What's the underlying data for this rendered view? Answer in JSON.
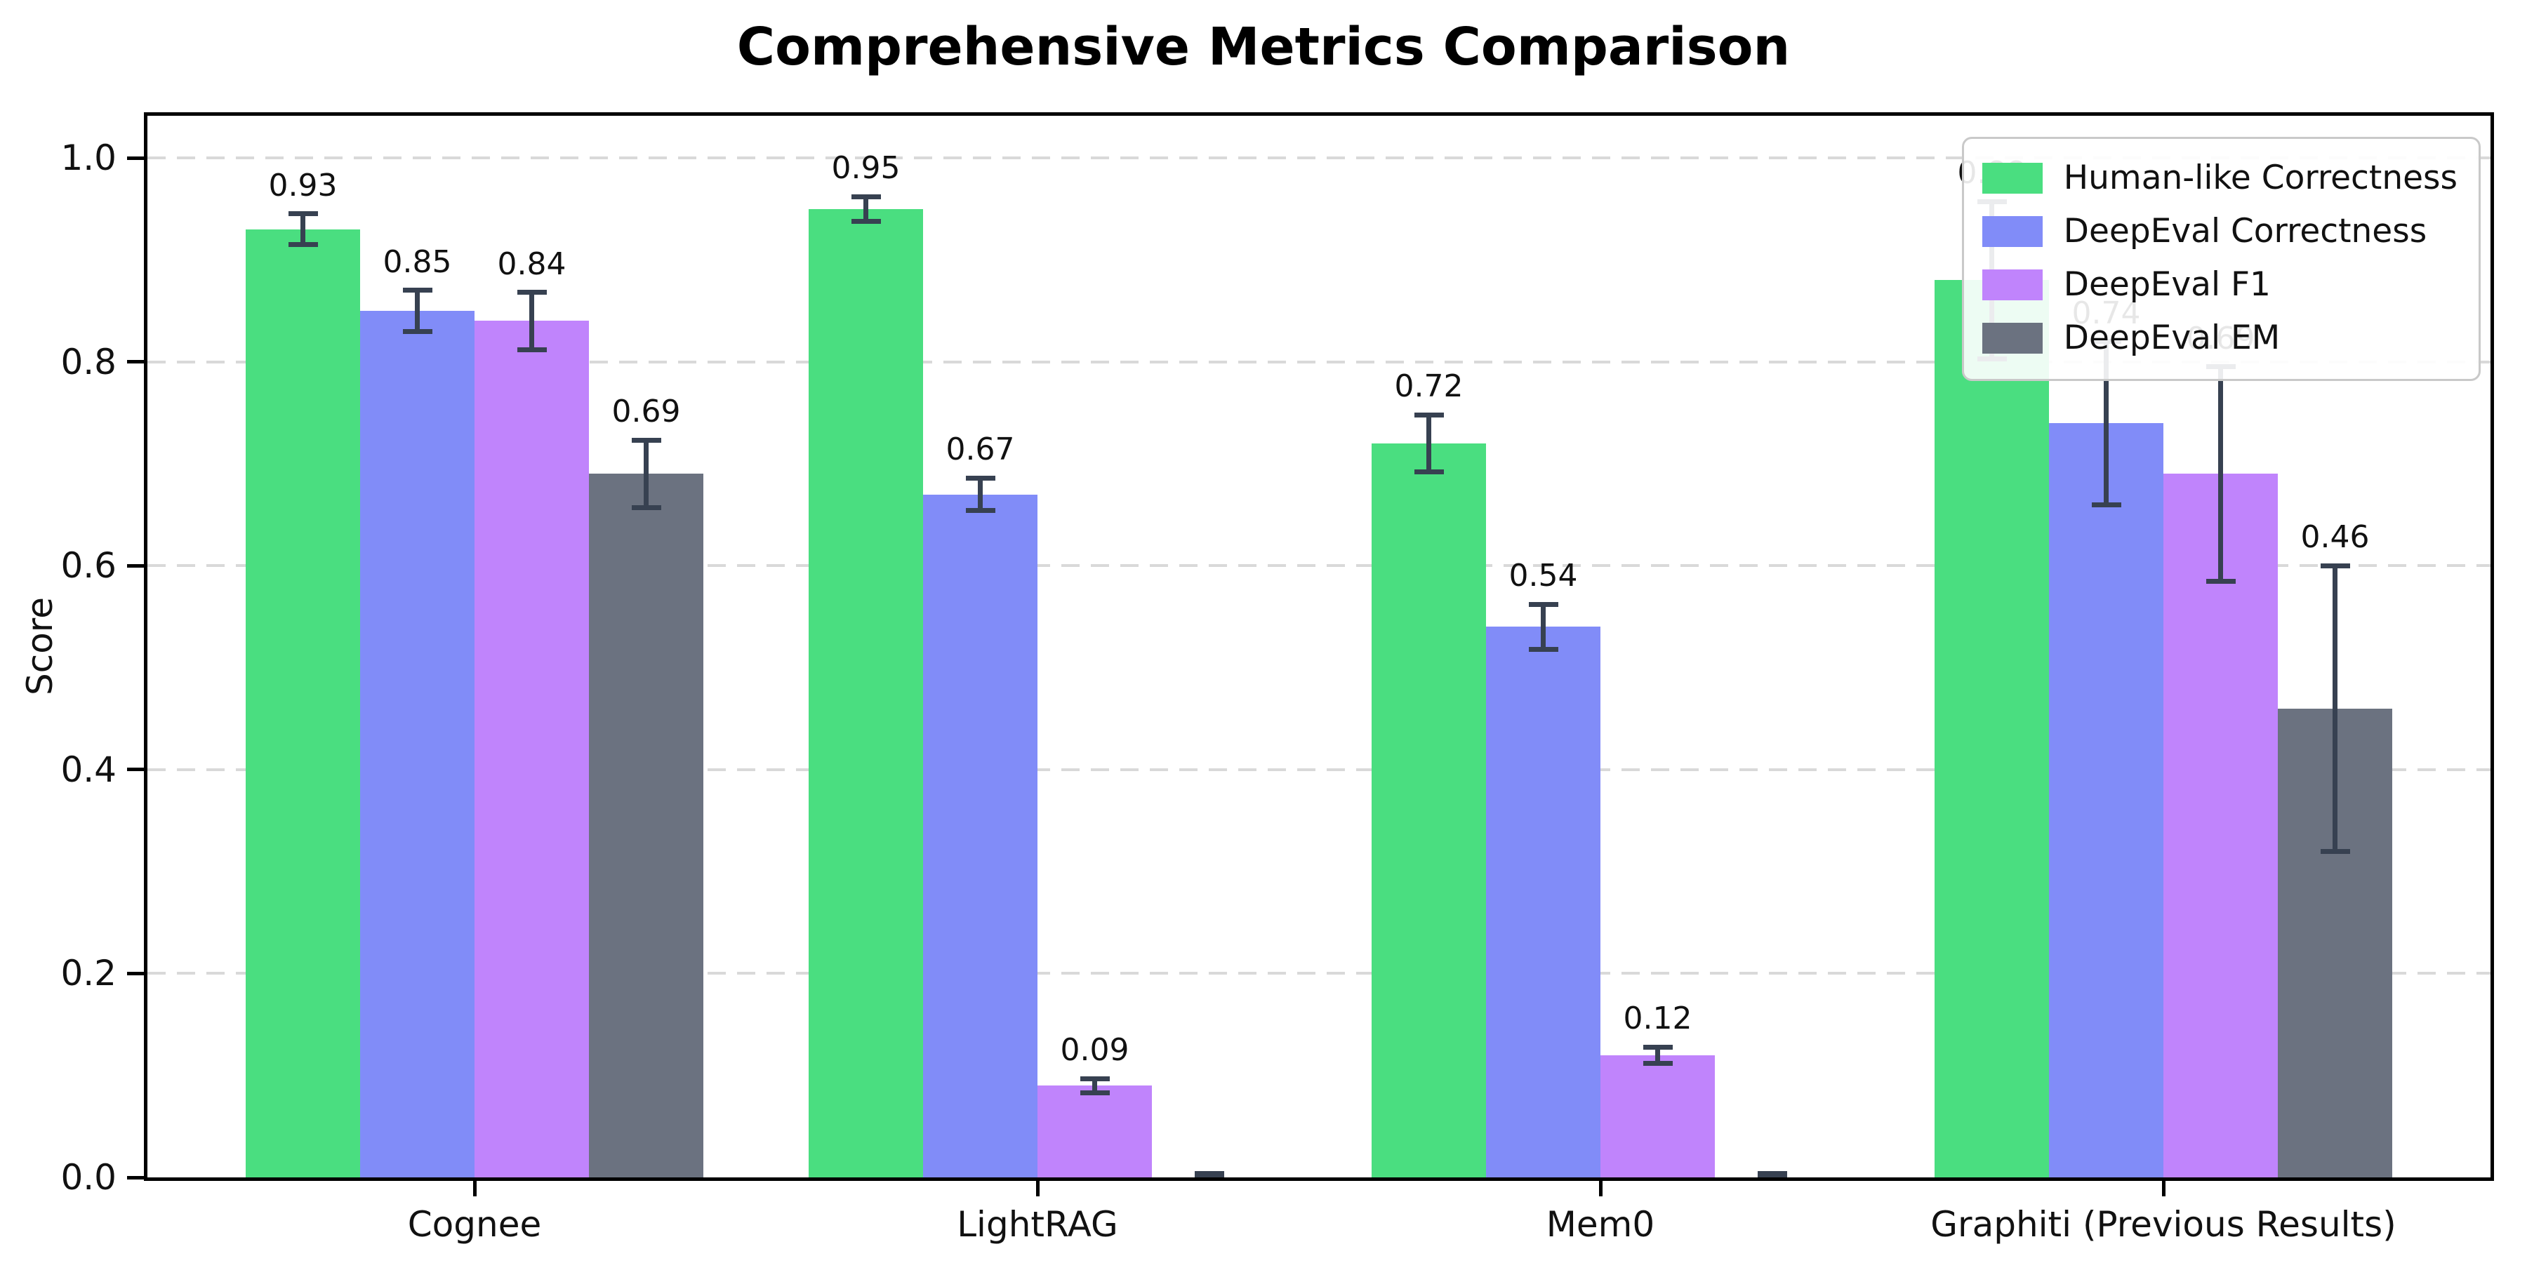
{
  "chart_data": {
    "type": "bar",
    "title": "Comprehensive Metrics Comparison",
    "ylabel": "Score",
    "xlabel": "",
    "categories": [
      "Cognee",
      "LightRAG",
      "Mem0",
      "Graphiti (Previous Results)"
    ],
    "series": [
      {
        "name": "Human-like Correctness",
        "color": "#4ade80",
        "values": [
          0.93,
          0.95,
          0.72,
          0.88
        ],
        "errors": [
          0.015,
          0.012,
          0.028,
          0.077
        ],
        "bar_labels": [
          "0.93",
          "0.95",
          "0.72",
          "0.88"
        ]
      },
      {
        "name": "DeepEval Correctness",
        "color": "#818cf8",
        "values": [
          0.85,
          0.67,
          0.54,
          0.74
        ],
        "errors": [
          0.02,
          0.016,
          0.022,
          0.08
        ],
        "bar_labels": [
          "0.85",
          "0.67",
          "0.54",
          "0.74"
        ]
      },
      {
        "name": "DeepEval F1",
        "color": "#c084fc",
        "values": [
          0.84,
          0.09,
          0.12,
          0.69
        ],
        "errors": [
          0.028,
          0.007,
          0.008,
          0.105
        ],
        "bar_labels": [
          "0.84",
          "0.09",
          "0.12",
          "0.69"
        ]
      },
      {
        "name": "DeepEval EM",
        "color": "#6b7280",
        "values": [
          0.69,
          0.0,
          0.0,
          0.46
        ],
        "errors": [
          0.033,
          0.004,
          0.004,
          0.14
        ],
        "bar_labels": [
          "0.69",
          "",
          "",
          "0.46"
        ]
      }
    ],
    "yticks": [
      0.0,
      0.2,
      0.4,
      0.6,
      0.8,
      1.0
    ],
    "ytick_labels": [
      "0.0",
      "0.2",
      "0.4",
      "0.6",
      "0.8",
      "1.0"
    ],
    "ylim": [
      0.0,
      1.05
    ],
    "grid": {
      "axis": "y",
      "style": "dashed",
      "color": "#d9d9d9"
    },
    "legend_position": "upper right",
    "error_bar_color": "#374151",
    "background_color": "#ffffff"
  }
}
